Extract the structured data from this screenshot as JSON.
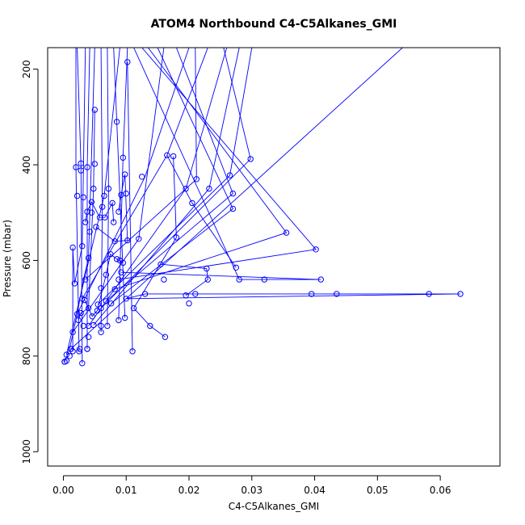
{
  "chart_data": {
    "type": "scatter",
    "title": "ATOM4 Northbound C4-C5Alkanes_GMI",
    "xlabel": "C4-C5Alkanes_GMI",
    "ylabel": "Pressure (mbar)",
    "xlim": [
      -0.0025,
      0.0695
    ],
    "ylim": [
      1030,
      155
    ],
    "y_reversed": true,
    "x_ticks": [
      0.0,
      0.01,
      0.02,
      0.03,
      0.04,
      0.05,
      0.06
    ],
    "x_tick_labels": [
      "0.00",
      "0.01",
      "0.02",
      "0.03",
      "0.04",
      "0.05",
      "0.06"
    ],
    "y_ticks": [
      200,
      400,
      600,
      800,
      1000
    ],
    "y_tick_labels": [
      "200",
      "400",
      "600",
      "800",
      "1000"
    ],
    "grid": false,
    "legend": "none",
    "series_color": "#0000ff",
    "points": [
      {
        "x": 0.0002,
        "y": 812
      },
      {
        "x": 0.0005,
        "y": 797
      },
      {
        "x": 0.0012,
        "y": 785
      },
      {
        "x": 0.0015,
        "y": 750
      },
      {
        "x": 0.0022,
        "y": 712
      },
      {
        "x": 0.003,
        "y": 680
      },
      {
        "x": 0.0035,
        "y": 640
      },
      {
        "x": 0.004,
        "y": 595
      },
      {
        "x": 0.0042,
        "y": 540
      },
      {
        "x": 0.0045,
        "y": 500
      },
      {
        "x": 0.0048,
        "y": 450
      },
      {
        "x": 0.005,
        "y": 398
      },
      {
        "x": 0.0065,
        "y": 465
      },
      {
        "x": 0.008,
        "y": 520
      },
      {
        "x": 0.009,
        "y": 600
      },
      {
        "x": 0.01,
        "y": 680
      },
      {
        "x": 0.011,
        "y": 790
      },
      {
        "x": 0.013,
        "y": 670
      },
      {
        "x": 0.016,
        "y": 640
      },
      {
        "x": 0.02,
        "y": 690
      },
      {
        "x": 0.028,
        "y": 640
      },
      {
        "x": 0.032,
        "y": 640
      },
      {
        "x": 0.041,
        "y": 640
      },
      {
        "x": 0.0395,
        "y": 670
      },
      {
        "x": 0.0435,
        "y": 670
      },
      {
        "x": 0.0582,
        "y": 670
      },
      {
        "x": 0.0632,
        "y": 670
      },
      {
        "x": 0.021,
        "y": 670
      },
      {
        "x": 0.012,
        "y": 555
      },
      {
        "x": 0.01,
        "y": 460
      },
      {
        "x": 0.0095,
        "y": 385
      },
      {
        "x": 0.0085,
        "y": 310
      },
      {
        "x": 0.005,
        "y": 285
      },
      {
        "x": 0.0102,
        "y": 185
      },
      {
        "x": 0.0125,
        "y": 425
      },
      {
        "x": 0.0165,
        "y": 380
      },
      {
        "x": 0.0175,
        "y": 382
      },
      {
        "x": 0.0195,
        "y": 450
      },
      {
        "x": 0.0205,
        "y": 480
      },
      {
        "x": 0.0212,
        "y": 430
      },
      {
        "x": 0.0232,
        "y": 450
      },
      {
        "x": 0.0265,
        "y": 422
      },
      {
        "x": 0.027,
        "y": 460
      },
      {
        "x": 0.027,
        "y": 492
      },
      {
        "x": 0.0298,
        "y": 388
      },
      {
        "x": 0.0355,
        "y": 542
      },
      {
        "x": 0.0402,
        "y": 577
      },
      {
        "x": 0.0275,
        "y": 615
      },
      {
        "x": 0.0228,
        "y": 617
      },
      {
        "x": 0.023,
        "y": 640
      },
      {
        "x": 0.0195,
        "y": 673
      },
      {
        "x": 0.018,
        "y": 552
      },
      {
        "x": 0.0155,
        "y": 608
      },
      {
        "x": 0.0162,
        "y": 760
      },
      {
        "x": 0.0138,
        "y": 737
      },
      {
        "x": 0.0112,
        "y": 700
      },
      {
        "x": 0.0098,
        "y": 720
      },
      {
        "x": 0.0088,
        "y": 725
      },
      {
        "x": 0.007,
        "y": 737
      },
      {
        "x": 0.006,
        "y": 750
      },
      {
        "x": 0.0038,
        "y": 785
      },
      {
        "x": 0.003,
        "y": 815
      },
      {
        "x": 0.0025,
        "y": 790
      },
      {
        "x": 0.001,
        "y": 800
      },
      {
        "x": 0.002,
        "y": 405
      },
      {
        "x": 0.0028,
        "y": 397
      },
      {
        "x": 0.0028,
        "y": 412
      },
      {
        "x": 0.0032,
        "y": 468
      },
      {
        "x": 0.0038,
        "y": 405
      },
      {
        "x": 0.0022,
        "y": 465
      },
      {
        "x": 0.0015,
        "y": 573
      },
      {
        "x": 0.0018,
        "y": 648
      },
      {
        "x": 0.003,
        "y": 570
      },
      {
        "x": 0.0035,
        "y": 520
      },
      {
        "x": 0.0038,
        "y": 498
      },
      {
        "x": 0.0045,
        "y": 478
      },
      {
        "x": 0.0052,
        "y": 530
      },
      {
        "x": 0.0058,
        "y": 510
      },
      {
        "x": 0.0062,
        "y": 488
      },
      {
        "x": 0.0066,
        "y": 510
      },
      {
        "x": 0.0072,
        "y": 450
      },
      {
        "x": 0.0078,
        "y": 480
      },
      {
        "x": 0.0082,
        "y": 560
      },
      {
        "x": 0.0088,
        "y": 498
      },
      {
        "x": 0.0092,
        "y": 463
      },
      {
        "x": 0.0098,
        "y": 420
      },
      {
        "x": 0.0102,
        "y": 558
      },
      {
        "x": 0.0095,
        "y": 605
      },
      {
        "x": 0.0088,
        "y": 640
      },
      {
        "x": 0.0082,
        "y": 660
      },
      {
        "x": 0.0076,
        "y": 690
      },
      {
        "x": 0.0068,
        "y": 685
      },
      {
        "x": 0.006,
        "y": 700
      },
      {
        "x": 0.0054,
        "y": 705
      },
      {
        "x": 0.0046,
        "y": 717
      },
      {
        "x": 0.004,
        "y": 700
      },
      {
        "x": 0.0034,
        "y": 683
      },
      {
        "x": 0.0028,
        "y": 710
      },
      {
        "x": 0.0024,
        "y": 725
      },
      {
        "x": 0.0032,
        "y": 737
      },
      {
        "x": 0.004,
        "y": 760
      },
      {
        "x": 0.0048,
        "y": 735
      },
      {
        "x": 0.0055,
        "y": 692
      },
      {
        "x": 0.006,
        "y": 658
      },
      {
        "x": 0.0068,
        "y": 630
      },
      {
        "x": 0.0075,
        "y": 587
      },
      {
        "x": 0.0085,
        "y": 597
      },
      {
        "x": 0.0092,
        "y": 625
      },
      {
        "x": 0.006,
        "y": 737
      },
      {
        "x": 0.004,
        "y": 737
      },
      {
        "x": 0.0012,
        "y": 785
      },
      {
        "x": 0.0026,
        "y": 785
      },
      {
        "x": 0.0038,
        "y": 785
      },
      {
        "x": 0.0015,
        "y": 790
      },
      {
        "x": 0.0005,
        "y": 810
      },
      {
        "x": 0.0002,
        "y": 812
      }
    ],
    "path_segments": [
      [
        {
          "x": 0.0002,
          "y": 812
        },
        {
          "x": 0.001,
          "y": 785
        },
        {
          "x": 0.0022,
          "y": 712
        },
        {
          "x": 0.0032,
          "y": 640
        },
        {
          "x": 0.004,
          "y": 595
        },
        {
          "x": 0.005,
          "y": 155
        }
      ],
      [
        {
          "x": 0.0005,
          "y": 797
        },
        {
          "x": 0.0065,
          "y": 465
        },
        {
          "x": 0.009,
          "y": 155
        }
      ],
      [
        {
          "x": 0.0012,
          "y": 785
        },
        {
          "x": 0.01,
          "y": 680
        },
        {
          "x": 0.054,
          "y": 155
        }
      ],
      [
        {
          "x": 0.0015,
          "y": 750
        },
        {
          "x": 0.012,
          "y": 555
        },
        {
          "x": 0.016,
          "y": 155
        }
      ],
      [
        {
          "x": 0.0022,
          "y": 712
        },
        {
          "x": 0.013,
          "y": 425
        },
        {
          "x": 0.02,
          "y": 155
        }
      ],
      [
        {
          "x": 0.003,
          "y": 680
        },
        {
          "x": 0.0165,
          "y": 380
        },
        {
          "x": 0.023,
          "y": 155
        }
      ],
      [
        {
          "x": 0.0035,
          "y": 640
        },
        {
          "x": 0.0212,
          "y": 430
        },
        {
          "x": 0.021,
          "y": 155
        }
      ],
      [
        {
          "x": 0.004,
          "y": 737
        },
        {
          "x": 0.0195,
          "y": 450
        },
        {
          "x": 0.026,
          "y": 155
        }
      ],
      [
        {
          "x": 0.0048,
          "y": 735
        },
        {
          "x": 0.0232,
          "y": 450
        },
        {
          "x": 0.028,
          "y": 155
        }
      ],
      [
        {
          "x": 0.0055,
          "y": 692
        },
        {
          "x": 0.0265,
          "y": 422
        },
        {
          "x": 0.03,
          "y": 155
        }
      ],
      [
        {
          "x": 0.006,
          "y": 700
        },
        {
          "x": 0.0298,
          "y": 388
        },
        {
          "x": 0.0255,
          "y": 155
        }
      ],
      [
        {
          "x": 0.0068,
          "y": 685
        },
        {
          "x": 0.027,
          "y": 460
        },
        {
          "x": 0.018,
          "y": 155
        }
      ],
      [
        {
          "x": 0.0076,
          "y": 690
        },
        {
          "x": 0.027,
          "y": 492
        },
        {
          "x": 0.015,
          "y": 155
        }
      ],
      [
        {
          "x": 0.0082,
          "y": 660
        },
        {
          "x": 0.0355,
          "y": 542
        },
        {
          "x": 0.0135,
          "y": 155
        }
      ],
      [
        {
          "x": 0.0088,
          "y": 640
        },
        {
          "x": 0.0402,
          "y": 577
        },
        {
          "x": 0.0125,
          "y": 155
        }
      ],
      [
        {
          "x": 0.0092,
          "y": 625
        },
        {
          "x": 0.041,
          "y": 640
        },
        {
          "x": 0.032,
          "y": 640
        },
        {
          "x": 0.028,
          "y": 640
        },
        {
          "x": 0.0112,
          "y": 155
        }
      ],
      [
        {
          "x": 0.01,
          "y": 680
        },
        {
          "x": 0.0632,
          "y": 670
        },
        {
          "x": 0.0582,
          "y": 670
        },
        {
          "x": 0.0435,
          "y": 670
        },
        {
          "x": 0.0395,
          "y": 670
        },
        {
          "x": 0.021,
          "y": 670
        },
        {
          "x": 0.013,
          "y": 670
        },
        {
          "x": 0.01,
          "y": 680
        }
      ],
      [
        {
          "x": 0.011,
          "y": 790
        },
        {
          "x": 0.0102,
          "y": 185
        }
      ],
      [
        {
          "x": 0.0098,
          "y": 720
        },
        {
          "x": 0.0085,
          "y": 310
        },
        {
          "x": 0.008,
          "y": 155
        }
      ],
      [
        {
          "x": 0.0088,
          "y": 725
        },
        {
          "x": 0.0095,
          "y": 385
        },
        {
          "x": 0.0102,
          "y": 155
        }
      ],
      [
        {
          "x": 0.007,
          "y": 737
        },
        {
          "x": 0.0072,
          "y": 450
        },
        {
          "x": 0.007,
          "y": 155
        }
      ],
      [
        {
          "x": 0.006,
          "y": 750
        },
        {
          "x": 0.0062,
          "y": 488
        },
        {
          "x": 0.006,
          "y": 155
        }
      ],
      [
        {
          "x": 0.0038,
          "y": 785
        },
        {
          "x": 0.0038,
          "y": 405
        },
        {
          "x": 0.0042,
          "y": 155
        }
      ],
      [
        {
          "x": 0.003,
          "y": 815
        },
        {
          "x": 0.0028,
          "y": 397
        },
        {
          "x": 0.0022,
          "y": 155
        }
      ],
      [
        {
          "x": 0.0025,
          "y": 790
        },
        {
          "x": 0.002,
          "y": 405
        },
        {
          "x": 0.002,
          "y": 155
        }
      ],
      [
        {
          "x": 0.0015,
          "y": 790
        },
        {
          "x": 0.0015,
          "y": 573
        },
        {
          "x": 0.0018,
          "y": 648
        },
        {
          "x": 0.003,
          "y": 570
        },
        {
          "x": 0.0035,
          "y": 155
        }
      ],
      [
        {
          "x": 0.0162,
          "y": 760
        },
        {
          "x": 0.0138,
          "y": 737
        },
        {
          "x": 0.0112,
          "y": 700
        },
        {
          "x": 0.018,
          "y": 552
        },
        {
          "x": 0.0175,
          "y": 382
        }
      ],
      [
        {
          "x": 0.0155,
          "y": 608
        },
        {
          "x": 0.0228,
          "y": 617
        },
        {
          "x": 0.023,
          "y": 640
        },
        {
          "x": 0.0195,
          "y": 673
        }
      ],
      [
        {
          "x": 0.0275,
          "y": 615
        },
        {
          "x": 0.0205,
          "y": 480
        },
        {
          "x": 0.0165,
          "y": 380
        }
      ],
      [
        {
          "x": 0.0052,
          "y": 530
        },
        {
          "x": 0.0082,
          "y": 560
        },
        {
          "x": 0.0102,
          "y": 558
        },
        {
          "x": 0.0098,
          "y": 420
        },
        {
          "x": 0.0092,
          "y": 463
        },
        {
          "x": 0.0088,
          "y": 498
        }
      ],
      [
        {
          "x": 0.0034,
          "y": 683
        },
        {
          "x": 0.0046,
          "y": 717
        },
        {
          "x": 0.0054,
          "y": 705
        },
        {
          "x": 0.0068,
          "y": 630
        },
        {
          "x": 0.0075,
          "y": 587
        },
        {
          "x": 0.0085,
          "y": 597
        },
        {
          "x": 0.0095,
          "y": 605
        }
      ],
      [
        {
          "x": 0.0024,
          "y": 725
        },
        {
          "x": 0.0028,
          "y": 710
        },
        {
          "x": 0.004,
          "y": 700
        },
        {
          "x": 0.0048,
          "y": 450
        },
        {
          "x": 0.005,
          "y": 285
        }
      ],
      [
        {
          "x": 0.0035,
          "y": 520
        },
        {
          "x": 0.0038,
          "y": 498
        },
        {
          "x": 0.0045,
          "y": 478
        },
        {
          "x": 0.0058,
          "y": 510
        },
        {
          "x": 0.0066,
          "y": 510
        },
        {
          "x": 0.0078,
          "y": 480
        },
        {
          "x": 0.008,
          "y": 520
        }
      ]
    ]
  }
}
